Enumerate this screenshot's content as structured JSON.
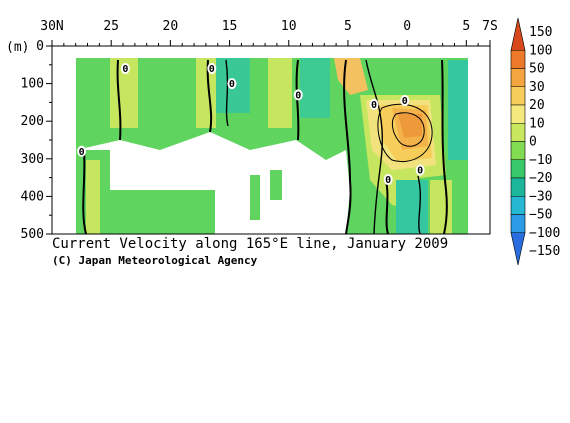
{
  "chart_data": {
    "type": "heatmap",
    "title": "Current Velocity along 165°E line, January 2009",
    "credit": "(C) Japan Meteorological Agency",
    "ylabel": "(m)",
    "x_tick_labels": [
      "30N",
      "25",
      "20",
      "15",
      "10",
      "5",
      "0",
      "5",
      "7S"
    ],
    "x_ticks_lat": [
      30,
      25,
      20,
      15,
      10,
      5,
      0,
      -5,
      -7
    ],
    "xlim": [
      30,
      -7
    ],
    "y_tick_labels": [
      "0",
      "100",
      "200",
      "300",
      "400",
      "500"
    ],
    "y_ticks": [
      0,
      100,
      200,
      300,
      400,
      500
    ],
    "ylim": [
      0,
      500
    ],
    "colorbar_labels": [
      "150",
      "100",
      "50",
      "30",
      "20",
      "10",
      "0",
      "−10",
      "−20",
      "−30",
      "−50",
      "−100",
      "−150"
    ],
    "colorbar_levels": [
      150,
      100,
      50,
      30,
      20,
      10,
      0,
      -10,
      -20,
      -30,
      -50,
      -100,
      -150
    ],
    "colorbar_colors": [
      "#d7481c",
      "#ec7a2a",
      "#f4a540",
      "#f7cd5a",
      "#f5e87d",
      "#c9e860",
      "#82dc52",
      "#38c96b",
      "#1cb79a",
      "#26b7d3",
      "#2c9be8",
      "#2a6ddf"
    ],
    "contour_labels": [
      {
        "lat": 23.8,
        "depth": 60,
        "text": "0"
      },
      {
        "lat": 16.5,
        "depth": 60,
        "text": "0"
      },
      {
        "lat": 14.8,
        "depth": 100,
        "text": "0"
      },
      {
        "lat": 9.2,
        "depth": 130,
        "text": "0"
      },
      {
        "lat": 2.8,
        "depth": 155,
        "text": "0"
      },
      {
        "lat": 0.2,
        "depth": 145,
        "text": "0"
      },
      {
        "lat": 27.5,
        "depth": 280,
        "text": "0"
      },
      {
        "lat": 1.6,
        "depth": 355,
        "text": "0"
      },
      {
        "lat": -1.1,
        "depth": 330,
        "text": "0"
      }
    ]
  }
}
